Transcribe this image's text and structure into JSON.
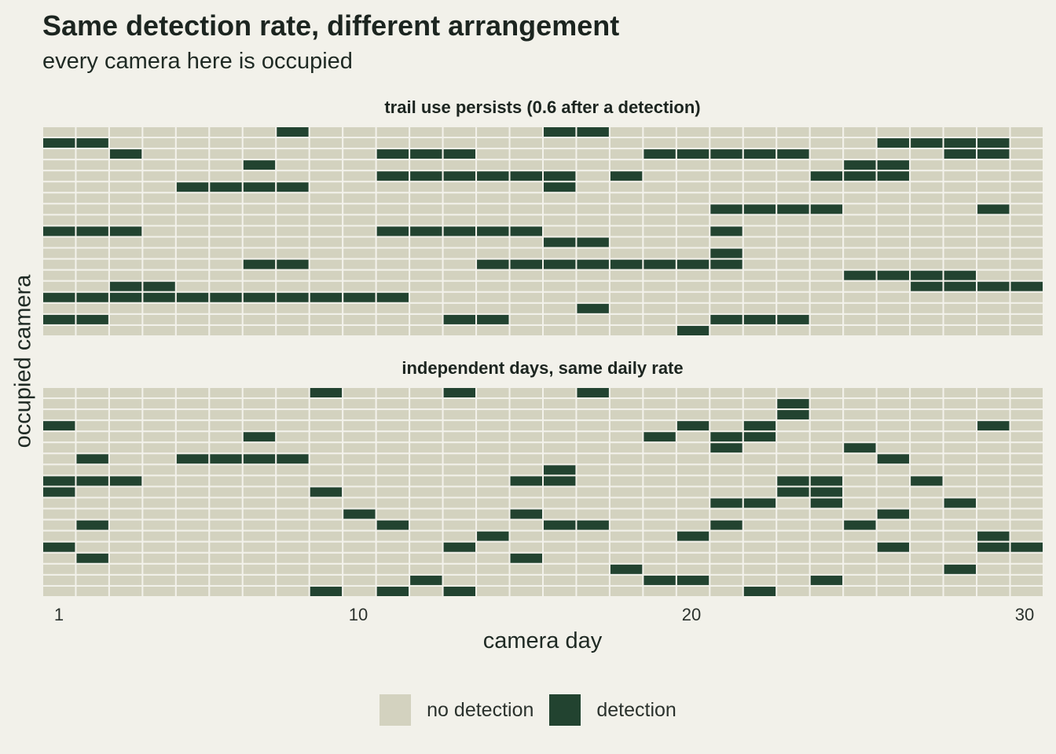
{
  "title": "Same detection rate, different arrangement",
  "subtitle": "every camera here is occupied",
  "colors": {
    "no_detection": "#d3d2bf",
    "detection": "#224330",
    "background": "#f2f1ea",
    "cell_border": "#f2f1ea"
  },
  "chart_data": {
    "type": "heatmap",
    "title": "Same detection rate, different arrangement",
    "subtitle": "every camera here is occupied",
    "xlabel": "camera day",
    "ylabel": "occupied camera",
    "x_ticks": [
      "1",
      "10",
      "20",
      "30"
    ],
    "x_range": [
      1,
      30
    ],
    "legend": {
      "position": "bottom",
      "entries": [
        "no detection",
        "detection"
      ]
    },
    "panels": [
      {
        "label": "trail use persists (0.6 after a detection)",
        "rows": [
          "000000010000000110000000000000",
          "110000000000000000000000011110",
          "001000000011100000111110000110",
          "000000100000000000000000110000",
          "000000000011111101000001110000",
          "000011110000000100000000000000",
          "000000000000000000000000000000",
          "000000000000000000001111000010",
          "000000000000000000000000000000",
          "111000000011111000001000000000",
          "000000000000000110000000000000",
          "000000000000000000001000000000",
          "000000110000011111111000000000",
          "000000000000000000000000111100",
          "001100000000000000000000001111",
          "111111111110000000000000000000",
          "000000000000000010000000000000",
          "110000000000110000001110000000",
          "000000000000000000010000000000"
        ]
      },
      {
        "label": "independent days, same daily rate",
        "rows": [
          "000000001000100010000000000000",
          "000000000000000000000010000000",
          "000000000000000000000010000000",
          "100000000000000000010100000010",
          "000000100000000000101100000000",
          "000000000000000000001000100000",
          "010011110000000000000000010000",
          "000000000000000100000000000000",
          "111000000000001100000011001000",
          "100000001000000000000011000000",
          "000000000000000000001101000100",
          "000000000100001000000000010000",
          "010000000010000110001000100000",
          "000000000000010000010000000010",
          "100000000000100000000000010011",
          "010000000000001000000000000000",
          "000000000000000001000000000100",
          "000000000001000000110001000000",
          "000000001010100000000100000000"
        ]
      }
    ]
  }
}
